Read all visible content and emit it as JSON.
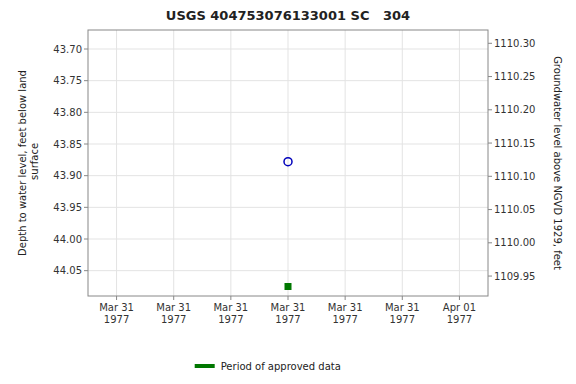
{
  "chart_data": {
    "type": "scatter",
    "title": "USGS 404753076133001 SC   304",
    "ylabel": "Depth to water level, feet below land\n surface",
    "y2label": "Groundwater level above NGVD 1929, feet",
    "categories": [
      "Mar 31\n1977",
      "Mar 31\n1977",
      "Mar 31\n1977",
      "Mar 31\n1977",
      "Mar 31\n1977",
      "Mar 31\n1977",
      "Apr 01\n1977"
    ],
    "series": [
      {
        "color": "#0000bb",
        "marker": "open-circle",
        "values": [
          null,
          null,
          null,
          43.878,
          null,
          null,
          null
        ]
      },
      {
        "name": "Period of approved data",
        "color": "#007700",
        "marker": "square",
        "values": [
          null,
          null,
          null,
          44.075,
          null,
          null,
          null
        ]
      }
    ],
    "ylim": [
      44.09,
      43.67
    ],
    "yticks": [
      {
        "value": 43.7,
        "label": "43.70"
      },
      43.75,
      {
        "value": 43.8,
        "label": "43.80"
      },
      43.85,
      {
        "value": 43.9,
        "label": "43.90"
      },
      43.95,
      {
        "value": 44.0,
        "label": "44.00"
      },
      44.05
    ],
    "y2lim": [
      1109.92,
      1110.32
    ],
    "y2ticks": [
      {
        "value": 1110.3,
        "label": "1110.30"
      },
      1110.25,
      {
        "value": 1110.2,
        "label": "1110.20"
      },
      1110.15,
      {
        "value": 1110.1,
        "label": "1110.10"
      },
      1110.05,
      {
        "value": 1110.0,
        "label": "1110.00"
      },
      1109.95
    ],
    "grid": true,
    "legend": "bottom"
  }
}
